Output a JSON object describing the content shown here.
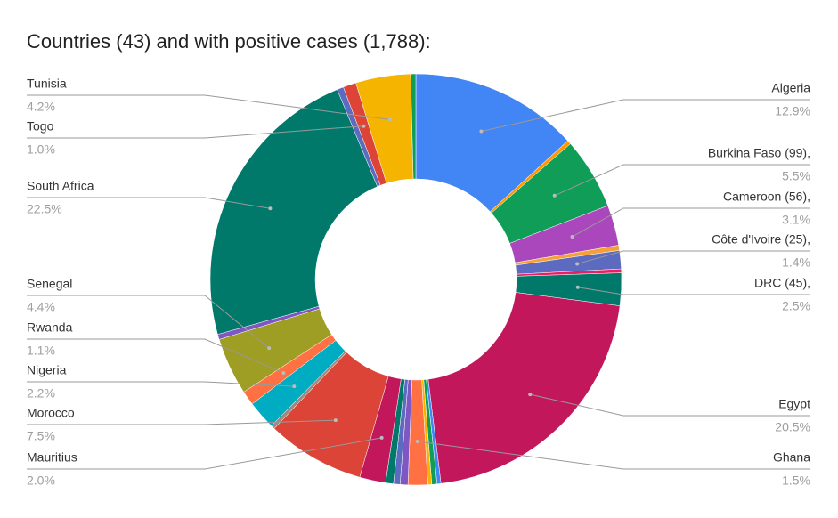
{
  "chart_data": {
    "type": "pie",
    "title": "Countries (43) and with positive cases (1,788):",
    "categories": [
      "Algeria",
      null,
      "Burkina Faso (99),",
      "Cameroon (56),",
      null,
      "Côte d'Ivoire (25),",
      null,
      "DRC (45),",
      "Egypt",
      null,
      null,
      null,
      "Ghana",
      null,
      null,
      null,
      "Mauritius",
      "Morocco",
      null,
      "Nigeria",
      "Rwanda",
      "Senegal",
      null,
      "South Africa",
      null,
      "Togo",
      "Tunisia",
      null
    ],
    "values": [
      12.9,
      0.3,
      5.5,
      3.1,
      0.4,
      1.4,
      0.3,
      2.5,
      20.5,
      0.3,
      0.4,
      0.3,
      1.5,
      0.6,
      0.5,
      0.6,
      2.0,
      7.5,
      0.3,
      2.2,
      1.1,
      4.4,
      0.4,
      22.5,
      0.5,
      1.0,
      4.2,
      0.4
    ],
    "value_labels": [
      "12.9%",
      null,
      "5.5%",
      "3.1%",
      null,
      "1.4%",
      null,
      "2.5%",
      "20.5%",
      null,
      null,
      null,
      "1.5%",
      null,
      null,
      null,
      "2.0%",
      "7.5%",
      null,
      "2.2%",
      "1.1%",
      "4.4%",
      null,
      "22.5%",
      null,
      "1.0%",
      "4.2%",
      null
    ],
    "colors": [
      "#4285f4",
      "#ff9900",
      "#0f9d58",
      "#ab47bc",
      "#f4a13a",
      "#5c6bc0",
      "#e91e63",
      "#00796b",
      "#c2185b",
      "#4285f4",
      "#0f9d58",
      "#f4b400",
      "#ff7043",
      "#7e57c2",
      "#5c6bc0",
      "#00796b",
      "#c2185b",
      "#db4437",
      "#a1887f",
      "#00acc1",
      "#ff7043",
      "#9e9d24",
      "#7e57c2",
      "#00796b",
      "#5c6bc0",
      "#db4437",
      "#f4b400",
      "#0f9d58"
    ],
    "donut": true
  }
}
